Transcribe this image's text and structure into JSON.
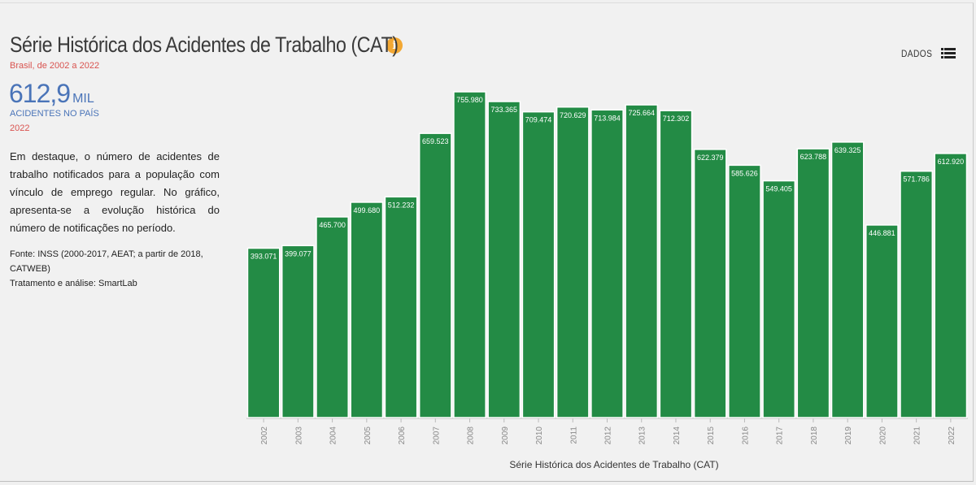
{
  "header": {
    "title": "Série Histórica dos Acidentes de Trabalho (CAT)",
    "subtitle": "Brasil, de 2002 a 2022",
    "dados_label": "DADOS"
  },
  "highlight": {
    "value": "612,9",
    "unit": "MIL",
    "label": "ACIDENTES NO PAÍS",
    "year": "2022"
  },
  "description": "Em destaque, o número de acidentes de trabalho notificados para a população com vínculo de emprego regular. No gráfico, apresenta-se a evolução histórica do número de notificações no período.",
  "source": {
    "line1": "Fonte: INSS (2000-2017, AEAT; a partir de 2018, CATWEB)",
    "line2": "Tratamento e análise: SmartLab"
  },
  "colors": {
    "bar": "#238b45",
    "bar_label": "#ffffff",
    "subtitle": "#d9534f",
    "highlight": "#4a74b8",
    "info_icon": "#f3a833"
  },
  "icons": [
    "info-icon",
    "list-icon"
  ],
  "chart_data": {
    "type": "bar",
    "title": "Série Histórica dos Acidentes de Trabalho (CAT)",
    "xlabel": "Série Histórica dos Acidentes de Trabalho (CAT)",
    "ylabel": "",
    "categories": [
      "2002",
      "2003",
      "2004",
      "2005",
      "2006",
      "2007",
      "2008",
      "2009",
      "2010",
      "2011",
      "2012",
      "2013",
      "2014",
      "2015",
      "2016",
      "2017",
      "2018",
      "2019",
      "2020",
      "2021",
      "2022"
    ],
    "values": [
      393071,
      399077,
      465700,
      499680,
      512232,
      659523,
      755980,
      733365,
      709474,
      720629,
      713984,
      725664,
      712302,
      622379,
      585626,
      549405,
      623788,
      639325,
      446881,
      571786,
      612920
    ],
    "labels": [
      "393.071",
      "399.077",
      "465.700",
      "499.680",
      "512.232",
      "659.523",
      "755.980",
      "733.365",
      "709.474",
      "720.629",
      "713.984",
      "725.664",
      "712.302",
      "622.379",
      "585.626",
      "549.405",
      "623.788",
      "639.325",
      "446.881",
      "571.786",
      "612.920"
    ],
    "ylim": [
      0,
      755980
    ],
    "grid": false,
    "legend": "none"
  }
}
